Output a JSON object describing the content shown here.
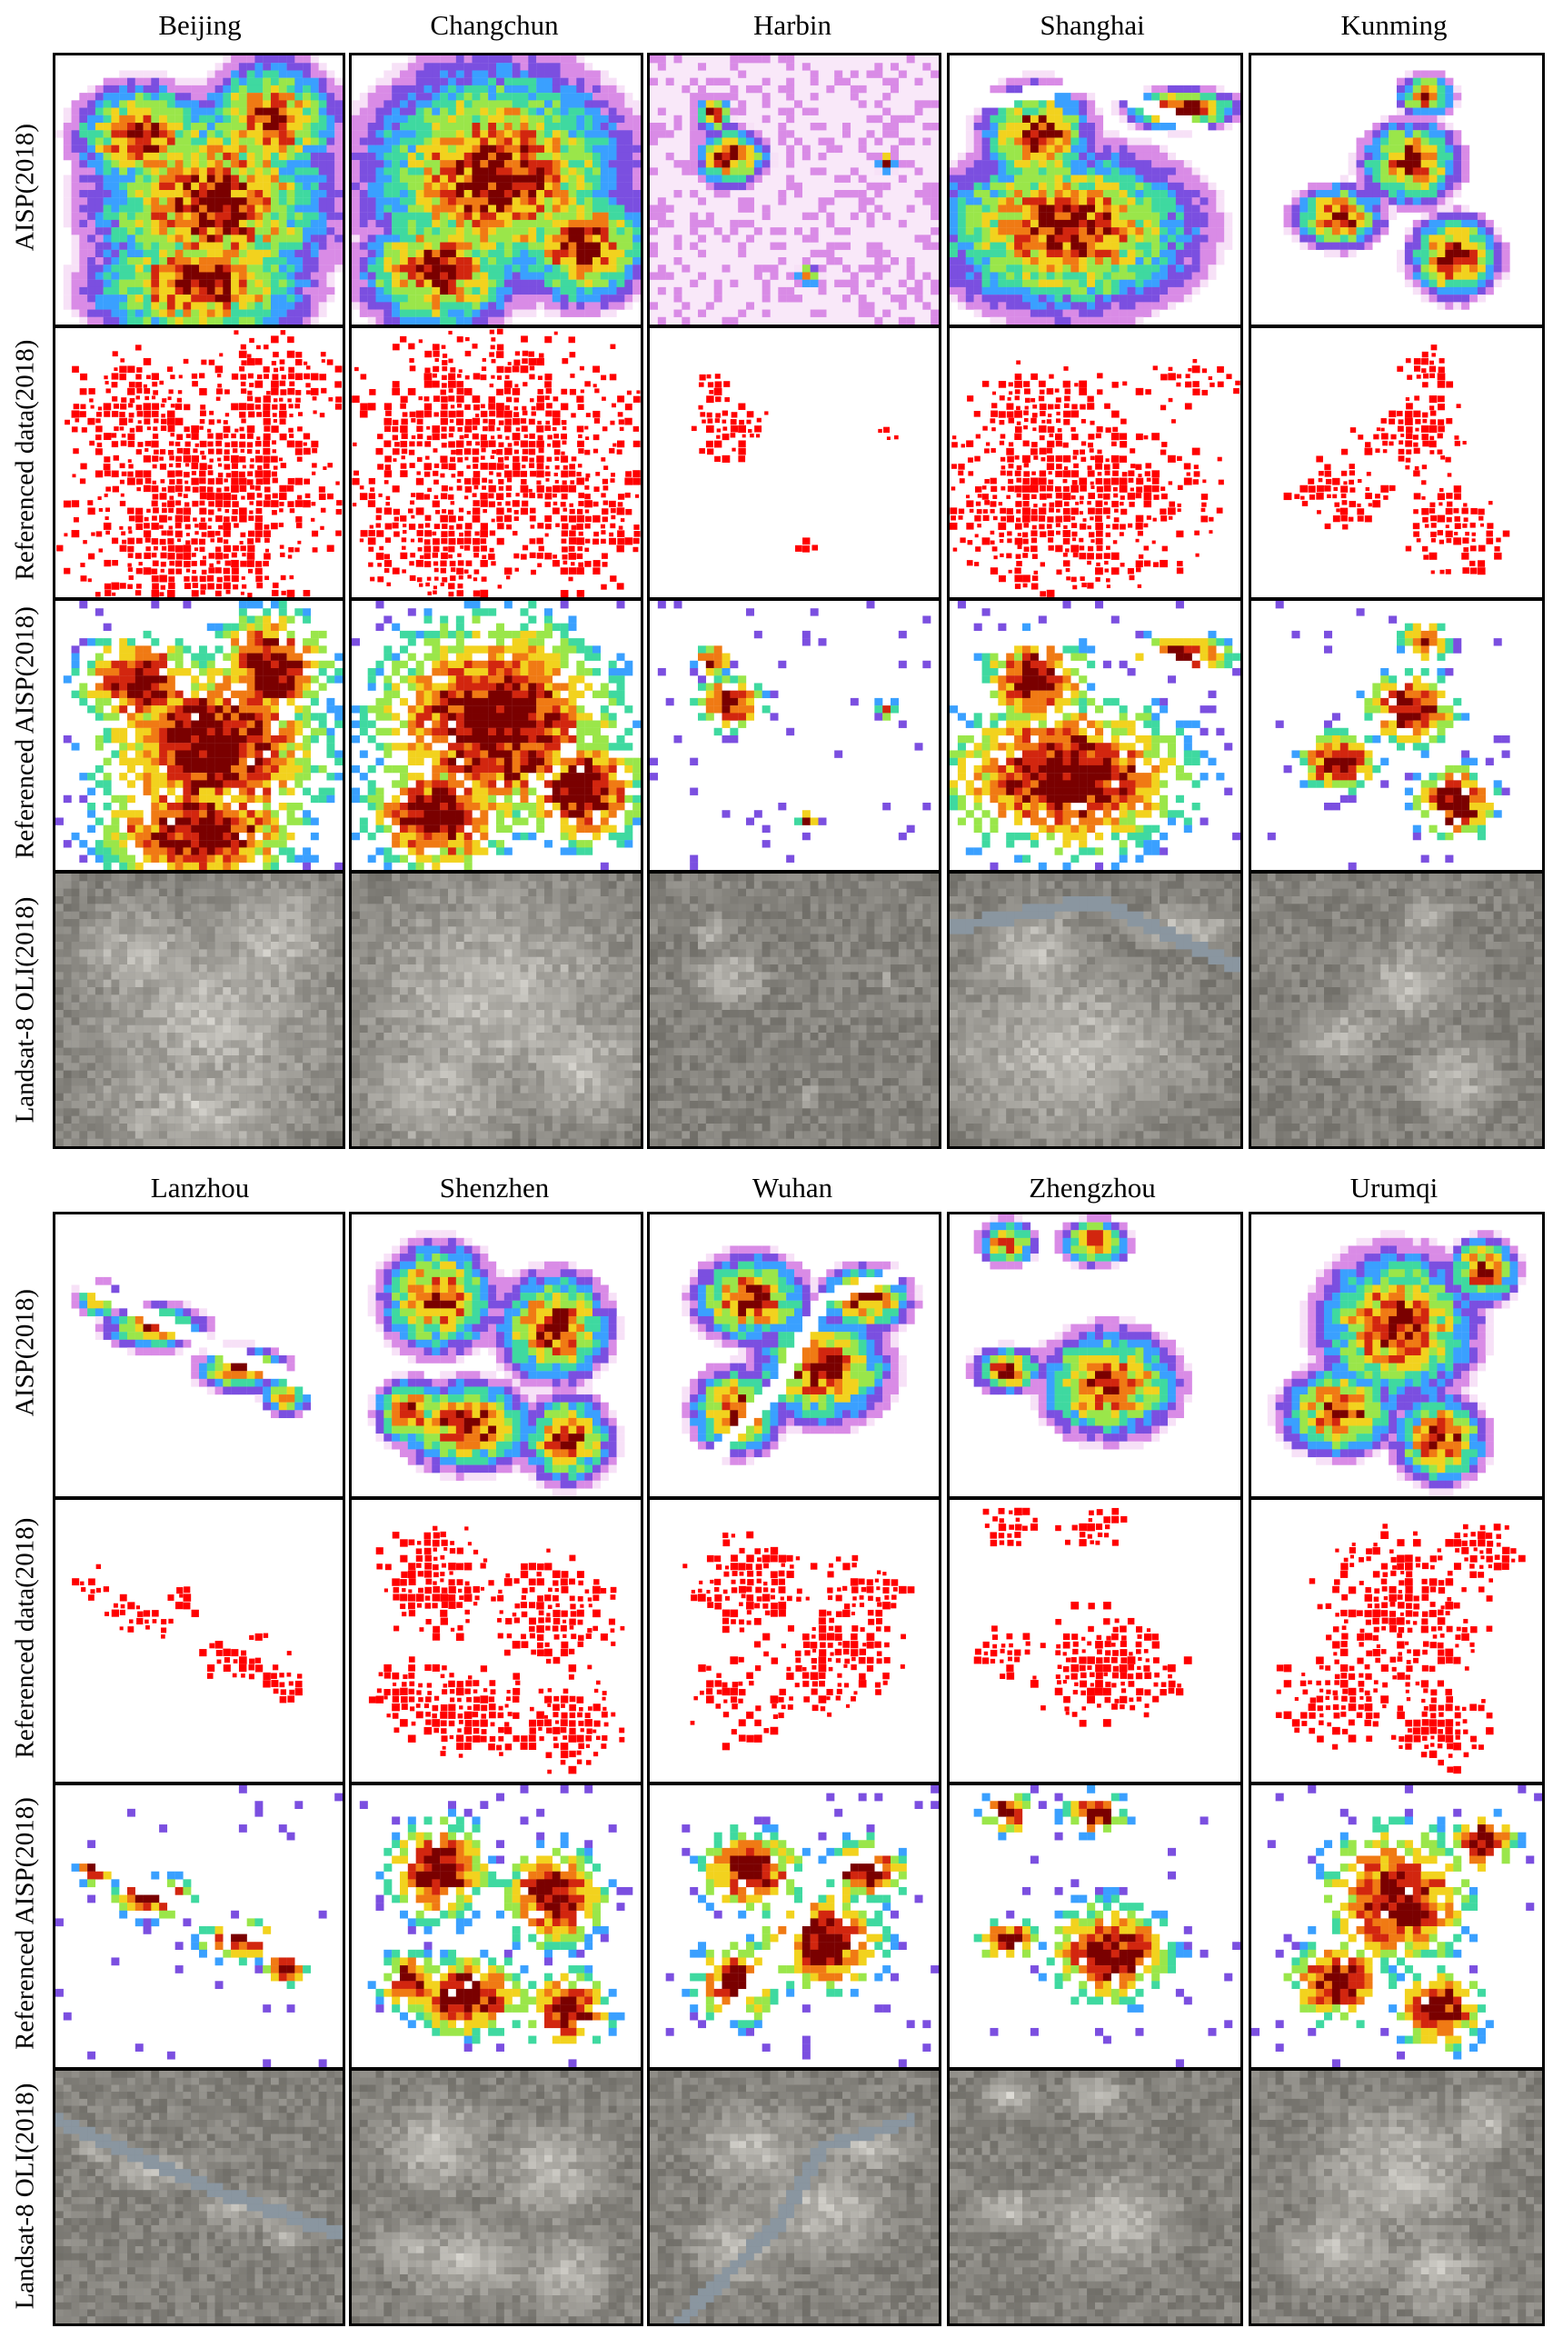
{
  "figure": {
    "row_labels": [
      "AISP(2018)",
      "Referenced data(2018)",
      "Referenced AISP(2018)",
      "Landsat-8 OLI(2018)"
    ],
    "panels": [
      {
        "cities": [
          "Beijing",
          "Changchun",
          "Harbin",
          "Shanghai",
          "Kunming"
        ]
      },
      {
        "cities": [
          "Lanzhou",
          "Shenzhen",
          "Wuhan",
          "Zhengzhou",
          "Urumqi"
        ]
      }
    ]
  },
  "colors": {
    "reference_red": "#ff0000",
    "aisp_ramp": [
      "#f7e1f7",
      "#d98be6",
      "#7b4fe0",
      "#3aa0ff",
      "#3fd9a0",
      "#9ae64a",
      "#f2d21e",
      "#f07a14",
      "#d2260f",
      "#7a0000"
    ],
    "frame": "#000000",
    "background": "#ffffff"
  }
}
